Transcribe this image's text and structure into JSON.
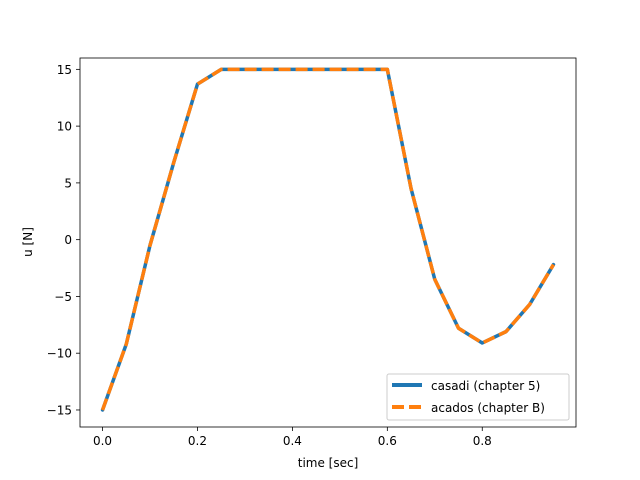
{
  "chart_data": {
    "type": "line",
    "title": "",
    "xlabel": "time [sec]",
    "ylabel": "u [N]",
    "xlim": [
      -0.0475,
      0.9975
    ],
    "ylim": [
      -16.5,
      16.0
    ],
    "xticks": [
      0.0,
      0.2,
      0.4,
      0.6,
      0.8
    ],
    "xtick_labels": [
      "0.0",
      "0.2",
      "0.4",
      "0.6",
      "0.8"
    ],
    "yticks": [
      -15,
      -10,
      -5,
      0,
      5,
      10,
      15
    ],
    "ytick_labels": [
      "−15",
      "−10",
      "−5",
      "0",
      "5",
      "10",
      "15"
    ],
    "grid": false,
    "legend_position": "lower-right",
    "x": [
      0.0,
      0.05,
      0.1,
      0.15,
      0.2,
      0.25,
      0.3,
      0.35,
      0.4,
      0.45,
      0.5,
      0.55,
      0.6,
      0.65,
      0.7,
      0.75,
      0.8,
      0.85,
      0.9,
      0.95
    ],
    "series": [
      {
        "name": "casadi (chapter 5)",
        "color": "#1f77b4",
        "style": "solid",
        "values": [
          -15.0,
          -9.2,
          -0.5,
          6.8,
          13.7,
          15.0,
          15.0,
          15.0,
          15.0,
          15.0,
          15.0,
          15.0,
          15.0,
          4.5,
          -3.5,
          -7.8,
          -9.1,
          -8.1,
          -5.7,
          -2.2
        ]
      },
      {
        "name": "acados (chapter B)",
        "color": "#ff7f0e",
        "style": "dashed",
        "values": [
          -15.0,
          -9.2,
          -0.5,
          6.8,
          13.7,
          15.0,
          15.0,
          15.0,
          15.0,
          15.0,
          15.0,
          15.0,
          15.0,
          4.5,
          -3.5,
          -7.8,
          -9.1,
          -8.1,
          -5.7,
          -2.2
        ]
      }
    ]
  }
}
